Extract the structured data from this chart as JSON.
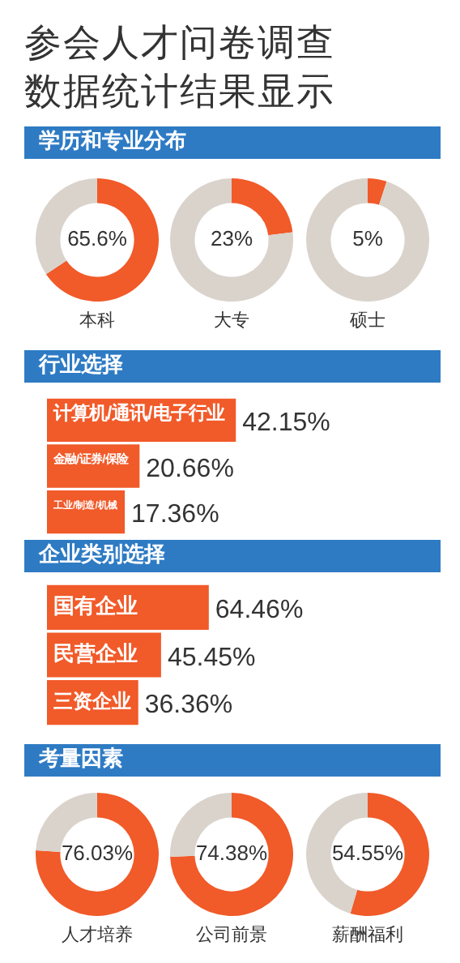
{
  "chart_data": [
    {
      "type": "other",
      "title": "参会人才问卷调查",
      "subtitle": "数据统计结果显示"
    },
    {
      "type": "donut",
      "title": "学历和专业分布",
      "xlabel": "本科",
      "categories": [
        null,
        null
      ],
      "values": [
        65.6,
        34.4
      ],
      "colors": [
        "#f15a29",
        "#d9d3cc"
      ],
      "value_labels": [
        "65.6%",
        null
      ]
    },
    {
      "type": "donut",
      "xlabel": "大专",
      "categories": [
        null,
        null
      ],
      "values": [
        23,
        77
      ],
      "colors": [
        "#f15a29",
        "#d9d3cc"
      ],
      "value_labels": [
        "23%",
        null
      ]
    },
    {
      "type": "donut",
      "xlabel": "硕士",
      "categories": [
        null,
        null
      ],
      "values": [
        5,
        95
      ],
      "colors": [
        "#f15a29",
        "#d9d3cc"
      ],
      "value_labels": [
        "5%",
        null
      ]
    },
    {
      "type": "bar",
      "orientation": "horizontal",
      "title": "行业选择",
      "categories": [
        "计算机/通讯/电子行业",
        "金融/证券/保险",
        "工业/制造/机械"
      ],
      "values": [
        42.15,
        20.66,
        17.36
      ],
      "color": "#f15a29",
      "value_labels": [
        "42.15%",
        "20.66%",
        "17.36%"
      ],
      "tick_labels": false
    },
    {
      "type": "bar",
      "orientation": "horizontal",
      "title": "企业类别选择",
      "categories": [
        "国有企业",
        "民营企业",
        "三资企业"
      ],
      "values": [
        64.46,
        45.45,
        36.36
      ],
      "color": "#f15a29",
      "value_labels": [
        "64.46%",
        "45.45%",
        "36.36%"
      ],
      "tick_labels": false
    },
    {
      "type": "donut",
      "title": "考量因素",
      "xlabel": "人才培养",
      "categories": [
        null,
        null
      ],
      "values": [
        76.03,
        23.97
      ],
      "colors": [
        "#f15a29",
        "#d9d3cc"
      ],
      "value_labels": [
        "76.03%",
        null
      ]
    },
    {
      "type": "donut",
      "xlabel": "公司前景",
      "categories": [
        null,
        null
      ],
      "values": [
        74.38,
        25.62
      ],
      "colors": [
        "#f15a29",
        "#d9d3cc"
      ],
      "value_labels": [
        "74.38%",
        null
      ]
    },
    {
      "type": "donut",
      "xlabel": "薪酬福利",
      "categories": [
        null,
        null
      ],
      "values": [
        54.55,
        45.45
      ],
      "colors": [
        "#f15a29",
        "#d9d3cc"
      ],
      "value_labels": [
        "54.55%",
        null
      ]
    }
  ]
}
